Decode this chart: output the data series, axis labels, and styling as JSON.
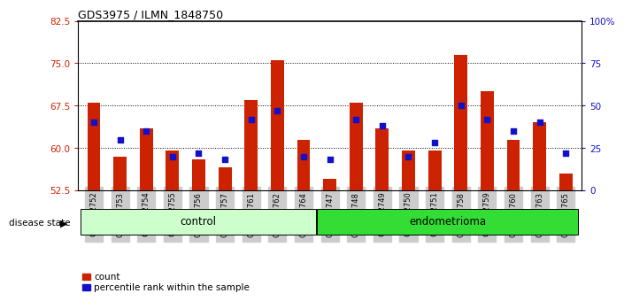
{
  "title": "GDS3975 / ILMN_1848750",
  "samples": [
    "GSM572752",
    "GSM572753",
    "GSM572754",
    "GSM572755",
    "GSM572756",
    "GSM572757",
    "GSM572761",
    "GSM572762",
    "GSM572764",
    "GSM572747",
    "GSM572748",
    "GSM572749",
    "GSM572750",
    "GSM572751",
    "GSM572758",
    "GSM572759",
    "GSM572760",
    "GSM572763",
    "GSM572765"
  ],
  "counts": [
    68.0,
    58.5,
    63.5,
    59.5,
    58.0,
    56.5,
    68.5,
    75.5,
    61.5,
    54.5,
    68.0,
    63.5,
    59.5,
    59.5,
    76.5,
    70.0,
    61.5,
    64.5,
    55.5
  ],
  "percentile": [
    40,
    30,
    35,
    20,
    22,
    18,
    42,
    47,
    20,
    18,
    42,
    38,
    20,
    28,
    50,
    42,
    35,
    40,
    22
  ],
  "ymin": 52.5,
  "ymax": 82.5,
  "yticks_left": [
    52.5,
    60.0,
    67.5,
    75.0,
    82.5
  ],
  "yticks_right_vals": [
    0,
    25,
    50,
    75,
    100
  ],
  "grid_lines": [
    60.0,
    67.5,
    75.0
  ],
  "control_count": 9,
  "endometrioma_count": 10,
  "bar_color_red": "#CC2200",
  "bar_color_blue": "#1111CC",
  "control_bg": "#CCFFCC",
  "endometrioma_bg": "#33DD33",
  "sample_bg": "#CCCCCC",
  "bar_width": 0.5,
  "dot_size": 22
}
